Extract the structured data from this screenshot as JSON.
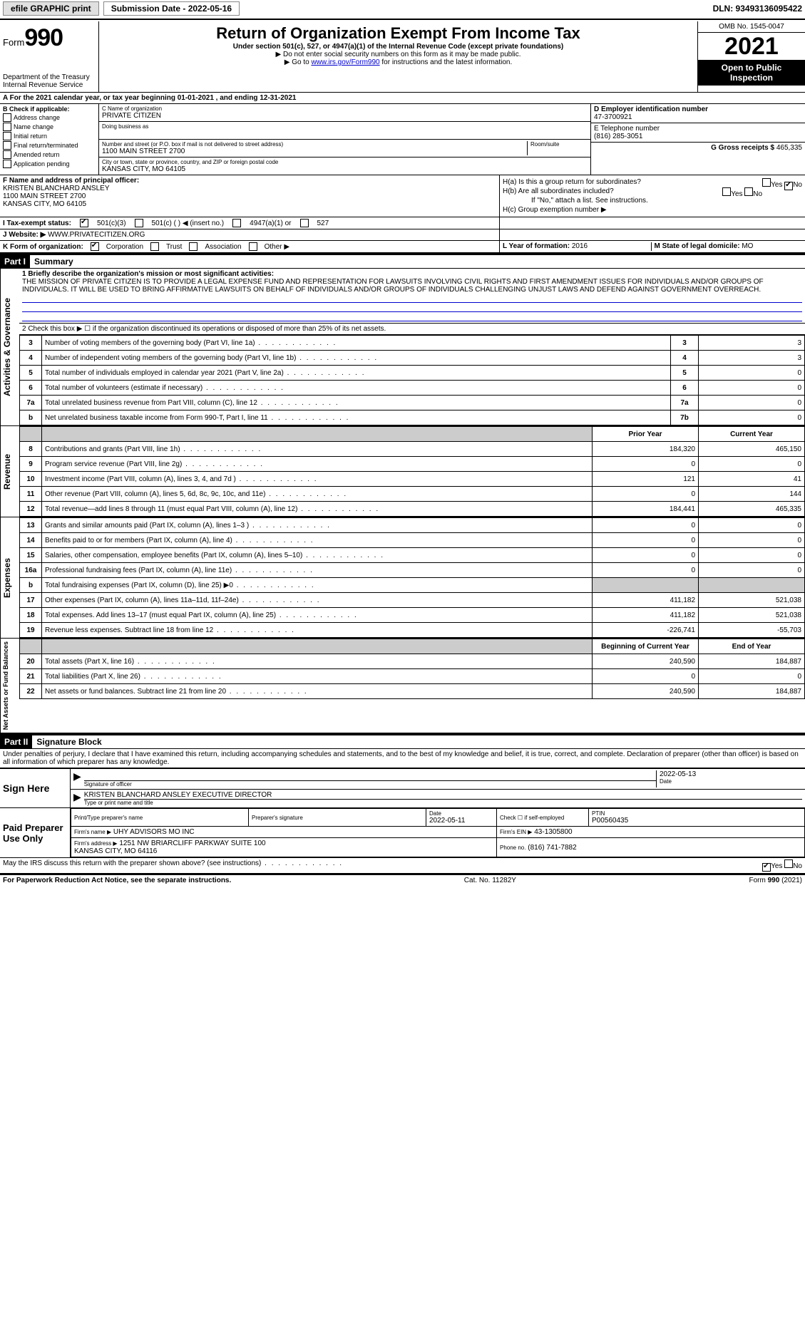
{
  "topbar": {
    "efile": "efile GRAPHIC print",
    "submission_label": "Submission Date - 2022-05-16",
    "dln": "DLN: 93493136095422"
  },
  "header": {
    "form_label": "Form",
    "form_number": "990",
    "dept": "Department of the Treasury",
    "irs": "Internal Revenue Service",
    "title": "Return of Organization Exempt From Income Tax",
    "sub": "Under section 501(c), 527, or 4947(a)(1) of the Internal Revenue Code (except private foundations)",
    "note1": "▶ Do not enter social security numbers on this form as it may be made public.",
    "note2_pre": "▶ Go to ",
    "note2_link": "www.irs.gov/Form990",
    "note2_post": " for instructions and the latest information.",
    "omb": "OMB No. 1545-0047",
    "year": "2021",
    "otp": "Open to Public Inspection"
  },
  "period": {
    "text": "A For the 2021 calendar year, or tax year beginning 01-01-2021    , and ending 12-31-2021"
  },
  "secB": {
    "heading": "B Check if applicable:",
    "addr_change": "Address change",
    "name_change": "Name change",
    "initial": "Initial return",
    "final": "Final return/terminated",
    "amended": "Amended return",
    "app_pending": "Application pending"
  },
  "secC": {
    "name_label": "C Name of organization",
    "name": "PRIVATE CITIZEN",
    "dba_label": "Doing business as",
    "street_label": "Number and street (or P.O. box if mail is not delivered to street address)",
    "room_label": "Room/suite",
    "street": "1100 MAIN STREET 2700",
    "city_label": "City or town, state or province, country, and ZIP or foreign postal code",
    "city": "KANSAS CITY, MO  64105"
  },
  "secD": {
    "label": "D Employer identification number",
    "value": "47-3700921"
  },
  "secE": {
    "label": "E Telephone number",
    "value": "(816) 285-3051"
  },
  "secG": {
    "label": "G Gross receipts $",
    "value": "465,335"
  },
  "secF": {
    "label": "F  Name and address of principal officer:",
    "name": "KRISTEN BLANCHARD ANSLEY",
    "addr1": "1100 MAIN STREET 2700",
    "addr2": "KANSAS CITY, MO  64105"
  },
  "secH": {
    "a": "H(a)  Is this a group return for subordinates?",
    "b": "H(b)  Are all subordinates included?",
    "b_note": "If \"No,\" attach a list. See instructions.",
    "c": "H(c)  Group exemption number ▶",
    "yes": "Yes",
    "no": "No"
  },
  "secI": {
    "label": "I   Tax-exempt status:",
    "c3": "501(c)(3)",
    "c": "501(c) (   ) ◀ (insert no.)",
    "a1": "4947(a)(1) or",
    "527": "527"
  },
  "secJ": {
    "label": "J   Website: ▶",
    "value": "WWW.PRIVATECITIZEN.ORG"
  },
  "secK": {
    "label": "K Form of organization:",
    "corp": "Corporation",
    "trust": "Trust",
    "assoc": "Association",
    "other": "Other ▶"
  },
  "secL": {
    "label": "L Year of formation:",
    "value": "2016"
  },
  "secM": {
    "label": "M State of legal domicile:",
    "value": "MO"
  },
  "part1": {
    "title": "Part I",
    "subtitle": "Summary",
    "line1_label": "1  Briefly describe the organization's mission or most significant activities:",
    "mission": "THE MISSION OF PRIVATE CITIZEN IS TO PROVIDE A LEGAL EXPENSE FUND AND REPRESENTATION FOR LAWSUITS INVOLVING CIVIL RIGHTS AND FIRST AMENDMENT ISSUES FOR INDIVIDUALS AND/OR GROUPS OF INDIVIDUALS. IT WILL BE USED TO BRING AFFIRMATIVE LAWSUITS ON BEHALF OF INDIVIDUALS AND/OR GROUPS OF INDIVIDUALS CHALLENGING UNJUST LAWS AND DEFEND AGAINST GOVERNMENT OVERREACH.",
    "line2": "2   Check this box ▶ ☐  if the organization discontinued its operations or disposed of more than 25% of its net assets.",
    "gov_label": "Activities & Governance",
    "rev_label": "Revenue",
    "exp_label": "Expenses",
    "net_label": "Net Assets or Fund Balances",
    "prior_year": "Prior Year",
    "current_year": "Current Year",
    "begin_year": "Beginning of Current Year",
    "end_year": "End of Year",
    "rows_gov": [
      {
        "n": "3",
        "desc": "Number of voting members of the governing body (Part VI, line 1a)",
        "box": "3",
        "val": "3"
      },
      {
        "n": "4",
        "desc": "Number of independent voting members of the governing body (Part VI, line 1b)",
        "box": "4",
        "val": "3"
      },
      {
        "n": "5",
        "desc": "Total number of individuals employed in calendar year 2021 (Part V, line 2a)",
        "box": "5",
        "val": "0"
      },
      {
        "n": "6",
        "desc": "Total number of volunteers (estimate if necessary)",
        "box": "6",
        "val": "0"
      },
      {
        "n": "7a",
        "desc": "Total unrelated business revenue from Part VIII, column (C), line 12",
        "box": "7a",
        "val": "0"
      },
      {
        "n": "b",
        "desc": "Net unrelated business taxable income from Form 990-T, Part I, line 11",
        "box": "7b",
        "val": "0"
      }
    ],
    "rows_rev": [
      {
        "n": "8",
        "desc": "Contributions and grants (Part VIII, line 1h)",
        "py": "184,320",
        "cy": "465,150"
      },
      {
        "n": "9",
        "desc": "Program service revenue (Part VIII, line 2g)",
        "py": "0",
        "cy": "0"
      },
      {
        "n": "10",
        "desc": "Investment income (Part VIII, column (A), lines 3, 4, and 7d )",
        "py": "121",
        "cy": "41"
      },
      {
        "n": "11",
        "desc": "Other revenue (Part VIII, column (A), lines 5, 6d, 8c, 9c, 10c, and 11e)",
        "py": "0",
        "cy": "144"
      },
      {
        "n": "12",
        "desc": "Total revenue—add lines 8 through 11 (must equal Part VIII, column (A), line 12)",
        "py": "184,441",
        "cy": "465,335"
      }
    ],
    "rows_exp": [
      {
        "n": "13",
        "desc": "Grants and similar amounts paid (Part IX, column (A), lines 1–3 )",
        "py": "0",
        "cy": "0"
      },
      {
        "n": "14",
        "desc": "Benefits paid to or for members (Part IX, column (A), line 4)",
        "py": "0",
        "cy": "0"
      },
      {
        "n": "15",
        "desc": "Salaries, other compensation, employee benefits (Part IX, column (A), lines 5–10)",
        "py": "0",
        "cy": "0"
      },
      {
        "n": "16a",
        "desc": "Professional fundraising fees (Part IX, column (A), line 11e)",
        "py": "0",
        "cy": "0"
      },
      {
        "n": "b",
        "desc": "Total fundraising expenses (Part IX, column (D), line 25) ▶0",
        "py": "",
        "cy": "",
        "gray": true
      },
      {
        "n": "17",
        "desc": "Other expenses (Part IX, column (A), lines 11a–11d, 11f–24e)",
        "py": "411,182",
        "cy": "521,038"
      },
      {
        "n": "18",
        "desc": "Total expenses. Add lines 13–17 (must equal Part IX, column (A), line 25)",
        "py": "411,182",
        "cy": "521,038"
      },
      {
        "n": "19",
        "desc": "Revenue less expenses. Subtract line 18 from line 12",
        "py": "-226,741",
        "cy": "-55,703"
      }
    ],
    "rows_net": [
      {
        "n": "20",
        "desc": "Total assets (Part X, line 16)",
        "py": "240,590",
        "cy": "184,887"
      },
      {
        "n": "21",
        "desc": "Total liabilities (Part X, line 26)",
        "py": "0",
        "cy": "0"
      },
      {
        "n": "22",
        "desc": "Net assets or fund balances. Subtract line 21 from line 20",
        "py": "240,590",
        "cy": "184,887"
      }
    ]
  },
  "part2": {
    "title": "Part II",
    "subtitle": "Signature Block",
    "perjury": "Under penalties of perjury, I declare that I have examined this return, including accompanying schedules and statements, and to the best of my knowledge and belief, it is true, correct, and complete. Declaration of preparer (other than officer) is based on all information of which preparer has any knowledge."
  },
  "sign": {
    "label": "Sign Here",
    "sig_officer": "Signature of officer",
    "date_label": "Date",
    "date_val": "2022-05-13",
    "name": "KRISTEN BLANCHARD ANSLEY  EXECUTIVE DIRECTOR",
    "name_label": "Type or print name and title"
  },
  "paid": {
    "label": "Paid Preparer Use Only",
    "print_label": "Print/Type preparer's name",
    "sig_label": "Preparer's signature",
    "date_label": "Date",
    "date_val": "2022-05-11",
    "check_label": "Check ☐ if self-employed",
    "ptin_label": "PTIN",
    "ptin_val": "P00560435",
    "firm_name_label": "Firm's name   ▶",
    "firm_name": "UHY ADVISORS MO INC",
    "firm_ein_label": "Firm's EIN ▶",
    "firm_ein": "43-1305800",
    "firm_addr_label": "Firm's address ▶",
    "firm_addr": "1251 NW BRIARCLIFF PARKWAY SUITE 100\nKANSAS CITY, MO  64116",
    "phone_label": "Phone no.",
    "phone_val": "(816) 741-7882"
  },
  "discuss": {
    "text": "May the IRS discuss this return with the preparer shown above? (see instructions)",
    "yes": "Yes",
    "no": "No"
  },
  "footer": {
    "left": "For Paperwork Reduction Act Notice, see the separate instructions.",
    "mid": "Cat. No. 11282Y",
    "right": "Form 990 (2021)"
  }
}
